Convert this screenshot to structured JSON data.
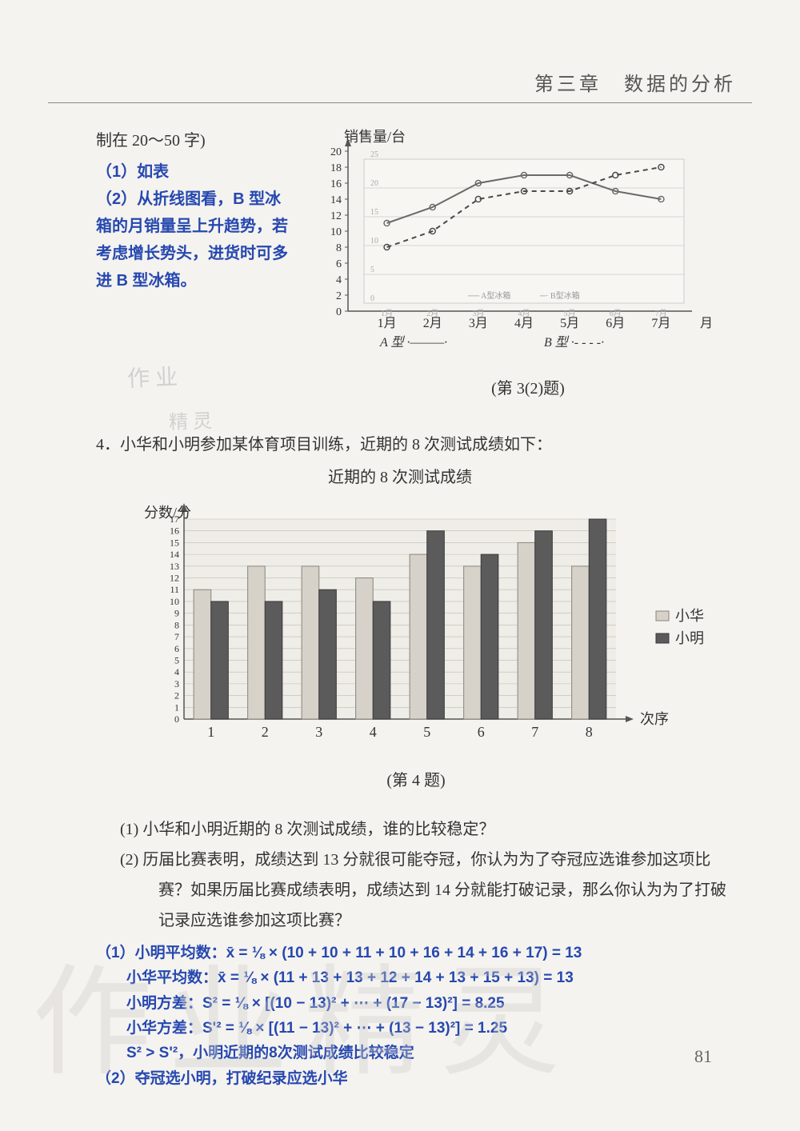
{
  "chapter": {
    "title": "第三章　数据的分析"
  },
  "top": {
    "context_line": "制在 20～50 字)",
    "ans1": "（1）如表",
    "ans2": "（2）从折线图看，B 型冰箱的月销量呈上升趋势，若考虑增长势头，进货时可多进 B 型冰箱。"
  },
  "line_chart": {
    "type": "line",
    "title_y": "销售量/台",
    "x_label": "月份",
    "x_categories": [
      "1月",
      "2月",
      "3月",
      "4月",
      "5月",
      "6月",
      "7月"
    ],
    "y_ticks": [
      0,
      2,
      4,
      6,
      8,
      10,
      12,
      14,
      16,
      18,
      20
    ],
    "ylim": [
      0,
      20
    ],
    "inner_grid_y_labels": [
      "0",
      "5",
      "10",
      "15",
      "20",
      "25"
    ],
    "series": [
      {
        "name": "A 型",
        "style": "solid",
        "legend_glyph": "·———·",
        "values": [
          11,
          13,
          16,
          17,
          17,
          15,
          14
        ],
        "color": "#6a6a6a",
        "marker": "circle"
      },
      {
        "name": "B 型",
        "style": "dashed",
        "legend_glyph": "·- - - -·",
        "values": [
          8,
          10,
          14,
          15,
          15,
          17,
          18
        ],
        "color": "#4a4a4a",
        "marker": "circle"
      }
    ],
    "legend_inner": {
      "a": "A型冰箱",
      "b": "B型冰箱"
    },
    "caption": "(第 3(2)题)",
    "bg": "#f8f6f2",
    "grid_color": "#cccccc",
    "axis_color": "#555555"
  },
  "watermark_small": {
    "line1": "作 业",
    "line2": "精 灵"
  },
  "q4": {
    "intro": "4．小华和小明参加某体育项目训练，近期的 8 次测试成绩如下：",
    "table_title": "近期的 8 次测试成绩"
  },
  "bar_chart": {
    "type": "bar",
    "y_label": "分数/分",
    "x_label": "次序",
    "x_categories": [
      "1",
      "2",
      "3",
      "4",
      "5",
      "6",
      "7",
      "8"
    ],
    "y_ticks": [
      0,
      1,
      2,
      3,
      4,
      5,
      6,
      7,
      8,
      9,
      10,
      11,
      12,
      13,
      14,
      15,
      16,
      17
    ],
    "ylim": [
      0,
      17
    ],
    "series": [
      {
        "name": "小华",
        "values": [
          11,
          13,
          13,
          12,
          14,
          13,
          15,
          13
        ],
        "color": "#d6d2ca",
        "border": "#8a8578"
      },
      {
        "name": "小明",
        "values": [
          10,
          10,
          11,
          10,
          16,
          14,
          16,
          17
        ],
        "color": "#5b5b5b",
        "border": "#3a3a3a"
      }
    ],
    "legend": {
      "hua": "小华",
      "ming": "小明"
    },
    "caption": "(第 4 题)",
    "bg": "#efede7",
    "grid_color": "#bfbcb3",
    "axis_color": "#555555",
    "bar_group_width": 0.64
  },
  "q4_sub": {
    "p1": "(1) 小华和小明近期的 8 次测试成绩，谁的比较稳定？",
    "p2": "(2) 历届比赛表明，成绩达到 13 分就很可能夺冠，你认为为了夺冠应选谁参加这项比赛？如果历届比赛成绩表明，成绩达到 14 分就能打破记录，那么你认为为了打破记录应选谁参加这项比赛？"
  },
  "answers4": {
    "l1": "（1）小明平均数：x̄ = ⅛ × (10 + 10 + 11 + 10 + 16 + 14 + 16 + 17) = 13",
    "l2": "　　小华平均数：x̄ = ⅛ × (11 + 13 + 13 + 12 + 14 + 13 + 15 + 13) = 13",
    "l3": "　　小明方差：S² = ⅛ × [(10 − 13)² + ⋯ + (17 − 13)²] = 8.25",
    "l4": "　　小华方差：S'² = ⅛ × [(11 − 13)² + ⋯ + (13 − 13)²] = 1.25",
    "l5": "　　S² > S'²，小明近期的8次测试成绩比较稳定",
    "l6": "（2）夺冠选小明，打破纪录应选小华"
  },
  "page_number": "81",
  "watermark_big": "作业精灵"
}
